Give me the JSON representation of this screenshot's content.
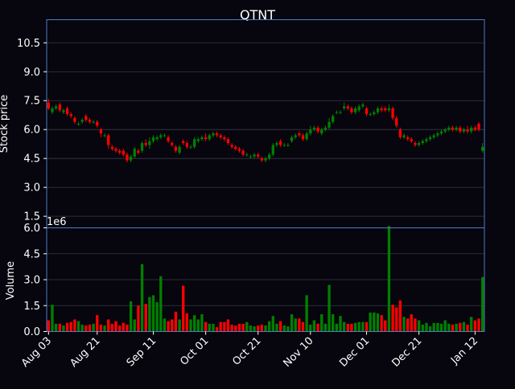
{
  "chart_data": {
    "type": "candlestick",
    "title": "QTNT",
    "price_panel": {
      "ylabel": "Stock price",
      "ylim": [
        0.9,
        11.7
      ],
      "yticks": [
        1.5,
        3.0,
        4.5,
        6.0,
        7.5,
        9.0,
        10.5
      ],
      "ytick_labels": [
        "1.5",
        "3.0",
        "4.5",
        "6.0",
        "7.5",
        "9.0",
        "10.5"
      ]
    },
    "volume_panel": {
      "ylabel": "Volume",
      "ylim": [
        0,
        6.0
      ],
      "yticks": [
        0,
        1.5,
        3.0,
        4.5,
        6.0
      ],
      "ytick_labels": [
        "0.0",
        "1.5",
        "3.0",
        "4.5",
        "6.0"
      ],
      "offset_label": "1e6"
    },
    "xtick_labels": [
      "Aug 03",
      "Aug 21",
      "Sep 11",
      "Oct 01",
      "Oct 21",
      "Nov 10",
      "Dec 01",
      "Dec 21",
      "Jan 12"
    ],
    "xtick_positions": [
      0,
      13,
      28,
      42,
      56,
      70,
      85,
      99,
      114
    ],
    "up_color": "#008000",
    "down_color": "#ff0000",
    "panel_border_color": "#4d7cc9",
    "grid": true,
    "candles": [
      [
        7.4,
        7.6,
        7.0,
        7.1,
        0.65
      ],
      [
        6.9,
        7.2,
        6.8,
        7.1,
        1.55
      ],
      [
        7.1,
        7.3,
        7.0,
        7.2,
        0.45
      ],
      [
        7.3,
        7.4,
        6.9,
        7.0,
        0.45
      ],
      [
        6.9,
        7.1,
        6.8,
        7.0,
        0.35
      ],
      [
        7.1,
        7.2,
        6.7,
        6.8,
        0.5
      ],
      [
        6.8,
        6.9,
        6.6,
        6.7,
        0.55
      ],
      [
        6.6,
        6.7,
        6.3,
        6.4,
        0.7
      ],
      [
        6.3,
        6.4,
        6.2,
        6.3,
        0.6
      ],
      [
        6.4,
        6.6,
        6.3,
        6.5,
        0.4
      ],
      [
        6.7,
        6.8,
        6.4,
        6.5,
        0.35
      ],
      [
        6.5,
        6.6,
        6.3,
        6.4,
        0.4
      ],
      [
        6.4,
        6.5,
        6.3,
        6.4,
        0.45
      ],
      [
        6.4,
        6.5,
        6.1,
        6.2,
        0.95
      ],
      [
        6.0,
        6.1,
        5.6,
        5.8,
        0.4
      ],
      [
        5.7,
        5.8,
        5.6,
        5.7,
        0.35
      ],
      [
        5.7,
        5.8,
        5.0,
        5.2,
        0.7
      ],
      [
        5.1,
        5.2,
        4.9,
        5.0,
        0.45
      ],
      [
        5.0,
        5.1,
        4.8,
        4.9,
        0.6
      ],
      [
        4.9,
        5.0,
        4.7,
        4.8,
        0.35
      ],
      [
        4.9,
        5.0,
        4.6,
        4.7,
        0.5
      ],
      [
        4.7,
        4.8,
        4.3,
        4.4,
        0.4
      ],
      [
        4.4,
        4.7,
        4.3,
        4.6,
        1.75
      ],
      [
        4.6,
        5.1,
        4.5,
        5.0,
        0.7
      ],
      [
        4.9,
        5.0,
        4.7,
        4.8,
        1.5
      ],
      [
        4.9,
        5.4,
        4.8,
        5.3,
        3.9
      ],
      [
        5.3,
        5.5,
        5.1,
        5.2,
        1.6
      ],
      [
        5.2,
        5.6,
        5.0,
        5.4,
        2.0
      ],
      [
        5.4,
        5.7,
        5.3,
        5.6,
        2.1
      ],
      [
        5.5,
        5.7,
        5.4,
        5.6,
        1.7
      ],
      [
        5.6,
        5.8,
        5.5,
        5.7,
        3.2
      ],
      [
        5.7,
        5.8,
        5.6,
        5.7,
        0.75
      ],
      [
        5.6,
        5.7,
        5.3,
        5.4,
        0.6
      ],
      [
        5.3,
        5.4,
        5.1,
        5.2,
        0.7
      ],
      [
        5.1,
        5.2,
        4.8,
        4.9,
        1.15
      ],
      [
        4.8,
        5.2,
        4.7,
        5.1,
        0.7
      ],
      [
        5.4,
        5.5,
        5.2,
        5.3,
        2.65
      ],
      [
        5.3,
        5.4,
        5.0,
        5.1,
        1.05
      ],
      [
        5.1,
        5.2,
        5.0,
        5.1,
        0.7
      ],
      [
        5.1,
        5.6,
        5.0,
        5.5,
        0.95
      ],
      [
        5.4,
        5.6,
        5.3,
        5.5,
        0.7
      ],
      [
        5.5,
        5.7,
        5.4,
        5.6,
        1.0
      ],
      [
        5.6,
        5.8,
        5.4,
        5.5,
        0.55
      ],
      [
        5.5,
        5.8,
        5.4,
        5.7,
        0.45
      ],
      [
        5.7,
        5.9,
        5.6,
        5.8,
        0.45
      ],
      [
        5.8,
        5.9,
        5.6,
        5.7,
        0.25
      ],
      [
        5.7,
        5.8,
        5.5,
        5.6,
        0.55
      ],
      [
        5.6,
        5.7,
        5.4,
        5.5,
        0.55
      ],
      [
        5.5,
        5.6,
        5.2,
        5.3,
        0.7
      ],
      [
        5.2,
        5.3,
        5.0,
        5.1,
        0.4
      ],
      [
        5.1,
        5.2,
        4.9,
        5.0,
        0.35
      ],
      [
        5.0,
        5.1,
        4.8,
        4.9,
        0.45
      ],
      [
        4.9,
        5.0,
        4.6,
        4.7,
        0.45
      ],
      [
        4.7,
        4.8,
        4.6,
        4.7,
        0.55
      ],
      [
        4.6,
        4.7,
        4.5,
        4.6,
        0.35
      ],
      [
        4.6,
        4.8,
        4.5,
        4.7,
        0.3
      ],
      [
        4.7,
        4.8,
        4.5,
        4.6,
        0.35
      ],
      [
        4.5,
        4.6,
        4.3,
        4.4,
        0.4
      ],
      [
        4.4,
        4.6,
        4.3,
        4.5,
        0.35
      ],
      [
        4.5,
        4.8,
        4.4,
        4.7,
        0.6
      ],
      [
        4.7,
        5.3,
        4.6,
        5.2,
        0.9
      ],
      [
        5.2,
        5.4,
        5.1,
        5.3,
        0.45
      ],
      [
        5.4,
        5.5,
        5.1,
        5.2,
        0.6
      ],
      [
        5.2,
        5.3,
        5.1,
        5.2,
        0.35
      ],
      [
        5.2,
        5.3,
        5.1,
        5.2,
        0.3
      ],
      [
        5.4,
        5.7,
        5.3,
        5.6,
        1.0
      ],
      [
        5.6,
        5.8,
        5.5,
        5.7,
        0.75
      ],
      [
        5.8,
        5.9,
        5.6,
        5.7,
        0.75
      ],
      [
        5.7,
        5.8,
        5.4,
        5.5,
        0.55
      ],
      [
        5.5,
        5.9,
        5.4,
        5.8,
        2.1
      ],
      [
        5.8,
        6.2,
        5.7,
        6.0,
        0.4
      ],
      [
        6.0,
        6.2,
        5.9,
        6.1,
        0.65
      ],
      [
        6.1,
        6.2,
        5.8,
        5.9,
        0.45
      ],
      [
        5.8,
        6.1,
        5.7,
        6.0,
        1.0
      ],
      [
        6.0,
        6.2,
        5.9,
        6.1,
        0.45
      ],
      [
        6.1,
        6.6,
        6.0,
        6.4,
        2.7
      ],
      [
        6.4,
        6.8,
        6.3,
        6.7,
        1.0
      ],
      [
        6.9,
        7.0,
        6.8,
        6.9,
        0.45
      ],
      [
        6.9,
        7.0,
        6.8,
        6.9,
        0.9
      ],
      [
        7.1,
        7.4,
        7.0,
        7.2,
        0.55
      ],
      [
        7.2,
        7.3,
        7.0,
        7.1,
        0.45
      ],
      [
        7.1,
        7.2,
        6.8,
        6.9,
        0.45
      ],
      [
        6.9,
        7.2,
        6.8,
        7.1,
        0.5
      ],
      [
        7.0,
        7.3,
        6.9,
        7.2,
        0.55
      ],
      [
        7.2,
        7.4,
        7.1,
        7.3,
        0.55
      ],
      [
        7.1,
        7.2,
        6.7,
        6.8,
        0.55
      ],
      [
        6.8,
        6.9,
        6.7,
        6.8,
        1.1
      ],
      [
        6.8,
        7.0,
        6.7,
        6.9,
        1.1
      ],
      [
        6.9,
        7.2,
        6.8,
        7.1,
        1.05
      ],
      [
        7.1,
        7.2,
        6.9,
        7.0,
        0.95
      ],
      [
        7.1,
        7.2,
        6.9,
        7.0,
        0.65
      ],
      [
        7.0,
        7.3,
        6.9,
        7.1,
        6.1
      ],
      [
        7.1,
        7.2,
        6.5,
        6.6,
        1.55
      ],
      [
        6.6,
        6.7,
        6.1,
        6.2,
        1.4
      ],
      [
        6.0,
        6.1,
        5.5,
        5.6,
        1.8
      ],
      [
        5.6,
        5.8,
        5.5,
        5.7,
        0.85
      ],
      [
        5.6,
        5.7,
        5.4,
        5.5,
        0.75
      ],
      [
        5.5,
        5.6,
        5.3,
        5.4,
        1.0
      ],
      [
        5.3,
        5.4,
        5.1,
        5.2,
        0.75
      ],
      [
        5.2,
        5.4,
        5.1,
        5.3,
        0.65
      ],
      [
        5.3,
        5.5,
        5.2,
        5.4,
        0.4
      ],
      [
        5.4,
        5.6,
        5.3,
        5.5,
        0.5
      ],
      [
        5.5,
        5.7,
        5.4,
        5.6,
        0.3
      ],
      [
        5.6,
        5.8,
        5.5,
        5.7,
        0.5
      ],
      [
        5.7,
        5.9,
        5.6,
        5.8,
        0.5
      ],
      [
        5.8,
        6.0,
        5.7,
        5.9,
        0.45
      ],
      [
        5.9,
        6.1,
        5.8,
        6.0,
        0.65
      ],
      [
        6.0,
        6.2,
        5.9,
        6.1,
        0.45
      ],
      [
        6.1,
        6.2,
        5.9,
        6.0,
        0.4
      ],
      [
        6.0,
        6.2,
        5.9,
        6.1,
        0.45
      ],
      [
        6.1,
        6.2,
        5.8,
        5.9,
        0.5
      ],
      [
        5.9,
        6.1,
        5.8,
        6.0,
        0.55
      ],
      [
        6.0,
        6.2,
        5.8,
        5.9,
        0.4
      ],
      [
        5.9,
        6.2,
        5.8,
        6.1,
        0.85
      ],
      [
        6.1,
        6.2,
        5.9,
        6.0,
        0.65
      ],
      [
        6.3,
        6.4,
        5.9,
        6.0,
        0.75
      ],
      [
        4.9,
        5.3,
        4.8,
        5.1,
        3.15
      ]
    ]
  }
}
